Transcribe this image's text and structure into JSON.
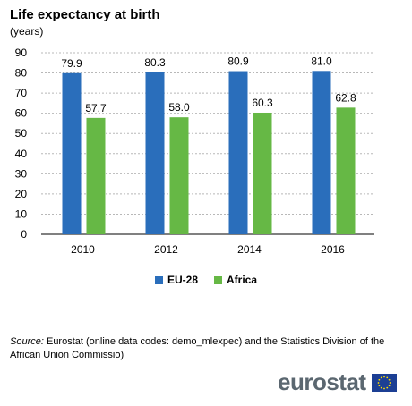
{
  "header": {
    "title": "Life expectancy at birth",
    "subtitle": "(years)"
  },
  "chart_data": {
    "type": "bar",
    "categories": [
      "2010",
      "2012",
      "2014",
      "2016"
    ],
    "series": [
      {
        "name": "EU-28",
        "values": [
          79.9,
          80.3,
          80.9,
          81.0
        ],
        "labels": [
          "79.9",
          "80.3",
          "80.9",
          "81.0"
        ],
        "color": "#2a6ebb"
      },
      {
        "name": "Africa",
        "values": [
          57.7,
          58.0,
          60.3,
          62.8
        ],
        "labels": [
          "57.7",
          "58.0",
          "60.3",
          "62.8"
        ],
        "color": "#66b845"
      }
    ],
    "ylim": [
      0,
      90
    ],
    "yticks": [
      0,
      10,
      20,
      30,
      40,
      50,
      60,
      70,
      80,
      90
    ],
    "grid": true,
    "gridline_style": "dashed",
    "legend_position": "bottom-center"
  },
  "footer": {
    "source_label": "Source:",
    "source_text": " Eurostat (online data codes: demo_mlexpec) and the Statistics Division of the African Union Commissio)",
    "logo_text": "eurostat",
    "logo_icon": "eu-flag-icon"
  }
}
